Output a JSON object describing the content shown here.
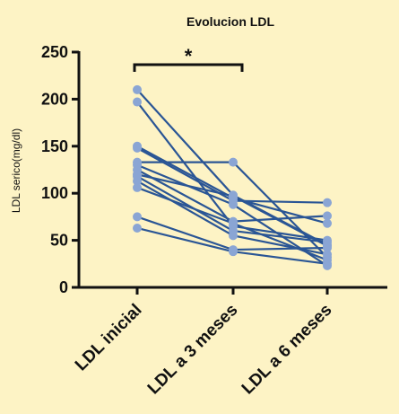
{
  "chart_data": {
    "type": "line",
    "title": "Evolucion LDL",
    "xlabel": "",
    "ylabel": "LDL serico(mg/dl)",
    "categories": [
      "LDL inicial",
      "LDL a 3 meses",
      "LDL a 6 meses"
    ],
    "ylim": [
      0,
      250
    ],
    "yticks": [
      0,
      50,
      100,
      150,
      200,
      250
    ],
    "grid": false,
    "legend": "none",
    "significance": {
      "label": "*",
      "from": "LDL inicial",
      "to": "LDL a 3 meses"
    },
    "colors": {
      "line": "#2a5595",
      "point": "#8aa5d4",
      "background": "#fdf3c5"
    },
    "series": [
      {
        "values": [
          210,
          98,
          45
        ]
      },
      {
        "values": [
          197,
          65,
          50
        ]
      },
      {
        "values": [
          150,
          95,
          68
        ]
      },
      {
        "values": [
          148,
          92,
          90
        ]
      },
      {
        "values": [
          133,
          133,
          32
        ]
      },
      {
        "values": [
          130,
          88,
          23
        ]
      },
      {
        "values": [
          125,
          70,
          76
        ]
      },
      {
        "values": [
          120,
          97,
          44
        ]
      },
      {
        "values": [
          118,
          60,
          48
        ]
      },
      {
        "values": [
          113,
          55,
          35
        ]
      },
      {
        "values": [
          106,
          68,
          29
        ]
      },
      {
        "values": [
          75,
          40,
          42
        ]
      },
      {
        "values": [
          63,
          38,
          25
        ]
      }
    ]
  }
}
